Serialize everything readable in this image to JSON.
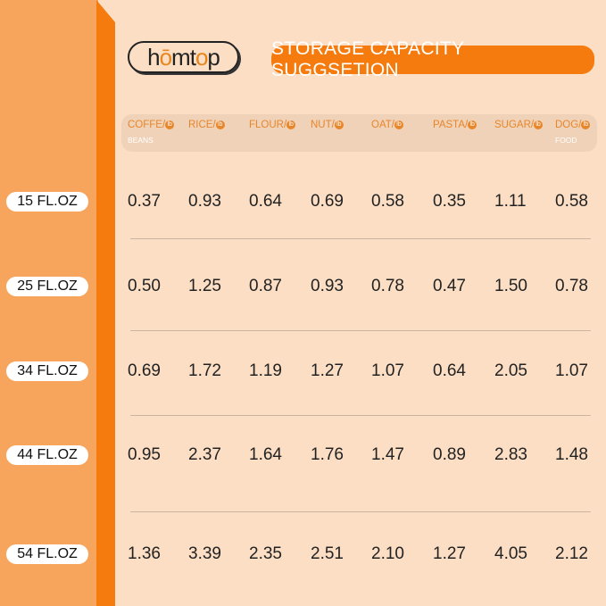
{
  "brand": {
    "logo_text": "homtop"
  },
  "title": "STORAGE CAPACITY SUGGSETION",
  "columns": [
    {
      "label": "COFFE",
      "unit": "lb",
      "sub": "BEANS"
    },
    {
      "label": "RICE",
      "unit": "lb"
    },
    {
      "label": "FLOUR",
      "unit": "lb"
    },
    {
      "label": "NUT",
      "unit": "lb"
    },
    {
      "label": "OAT",
      "unit": "lb"
    },
    {
      "label": "PASTA",
      "unit": "lb"
    },
    {
      "label": "SUGAR",
      "unit": "lb"
    },
    {
      "label": "DOG",
      "unit": "lb",
      "sub": "FOOD"
    }
  ],
  "rows": [
    {
      "size": "15 FL.OZ",
      "values": [
        "0.37",
        "0.93",
        "0.64",
        "0.69",
        "0.58",
        "0.35",
        "1.11",
        "0.58"
      ]
    },
    {
      "size": "25 FL.OZ",
      "values": [
        "0.50",
        "1.25",
        "0.87",
        "0.93",
        "0.78",
        "0.47",
        "1.50",
        "0.78"
      ]
    },
    {
      "size": "34 FL.OZ",
      "values": [
        "0.69",
        "1.72",
        "1.19",
        "1.27",
        "1.07",
        "0.64",
        "2.05",
        "1.07"
      ]
    },
    {
      "size": "44 FL.OZ",
      "values": [
        "0.95",
        "2.37",
        "1.64",
        "1.76",
        "1.47",
        "0.89",
        "2.83",
        "1.48"
      ]
    },
    {
      "size": "54 FL.OZ",
      "values": [
        "1.36",
        "3.39",
        "2.35",
        "2.51",
        "2.10",
        "1.27",
        "4.05",
        "2.12"
      ]
    }
  ],
  "colors": {
    "accent": "#f57b0e",
    "panel": "#f7a55c",
    "background": "#fbdec4",
    "header_text": "#e8862a"
  }
}
